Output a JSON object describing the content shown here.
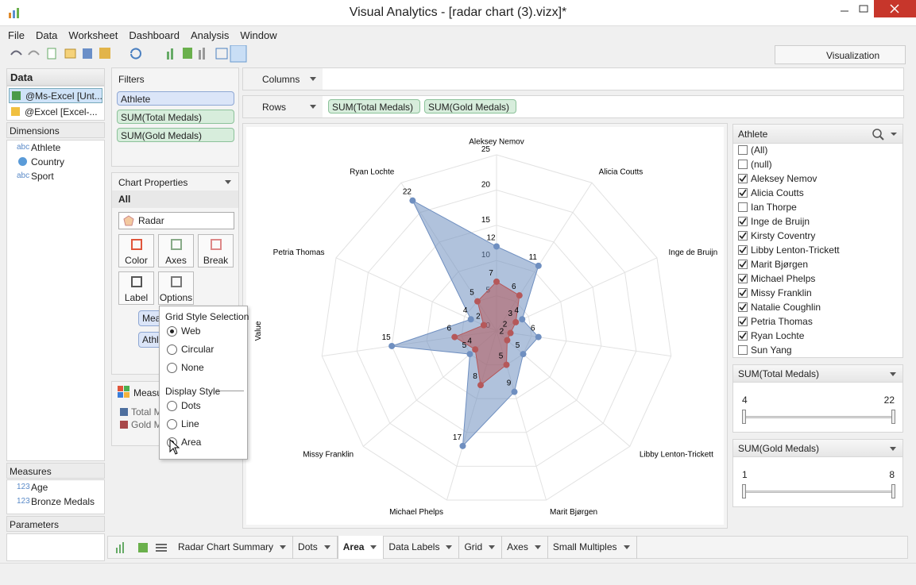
{
  "window": {
    "title": "Visual Analytics - [radar chart (3).vizx]*"
  },
  "menu": [
    "File",
    "Data",
    "Worksheet",
    "Dashboard",
    "Analysis",
    "Window"
  ],
  "toolbar": {
    "visualization": "Visualization"
  },
  "data_panel": {
    "title": "Data",
    "sources": [
      "@Ms-Excel [Unt...",
      "@Excel [Excel-..."
    ],
    "dimensions_title": "Dimensions",
    "dimensions": [
      {
        "icon": "abc",
        "name": "Athlete"
      },
      {
        "name": "Country"
      },
      {
        "icon": "abc",
        "name": "Sport"
      }
    ],
    "measures_title": "Measures",
    "measures": [
      {
        "icon": "123",
        "name": "Age"
      },
      {
        "icon": "123",
        "name": "Bronze Medals"
      }
    ],
    "parameters_title": "Parameters"
  },
  "filters": {
    "title": "Filters",
    "items": [
      "Athlete",
      "SUM(Total Medals)",
      "SUM(Gold Medals)"
    ]
  },
  "chart_properties": {
    "title": "Chart Properties",
    "scope": "All",
    "chart_type": "Radar",
    "buttons": [
      "Color",
      "Axes",
      "Break",
      "Label",
      "Options"
    ],
    "pills": [
      "Meas",
      "Athle"
    ]
  },
  "popup": {
    "grid_title": "Grid Style Selection",
    "grid_options": [
      {
        "label": "Web",
        "selected": true
      },
      {
        "label": "Circular",
        "selected": false
      },
      {
        "label": "None",
        "selected": false
      }
    ],
    "display_title": "Display Style",
    "display_options": [
      {
        "label": "Dots",
        "selected": false
      },
      {
        "label": "Line",
        "selected": false
      },
      {
        "label": "Area",
        "selected": true
      }
    ]
  },
  "legend": {
    "title": "Measu",
    "items": [
      {
        "label": "Total M",
        "color": "#4e6f9e"
      },
      {
        "label": "Gold Me",
        "color": "#a8484a"
      }
    ]
  },
  "shelves": {
    "columns": "Columns",
    "rows": "Rows",
    "row_pills": [
      "SUM(Total Medals)",
      "SUM(Gold Medals)"
    ]
  },
  "chart_data": {
    "type": "radar",
    "y_label": "Value",
    "categories": [
      "Aleksey Nemov",
      "Alicia Coutts",
      "Inge de Bruijn",
      null,
      "Libby Lenton-Trickett",
      "Marit Bjørgen",
      "Michael Phelps",
      "Missy Franklin",
      null,
      "Petria Thomas",
      "Ryan Lochte"
    ],
    "series": [
      {
        "color": "#6f8fc0",
        "values": [
          12,
          11,
          4,
          6,
          5,
          9,
          17,
          5,
          15,
          4,
          22
        ]
      },
      {
        "color": "#b5585a",
        "values": [
          7,
          6,
          3,
          2,
          2,
          5,
          8,
          4,
          6,
          2,
          5
        ]
      }
    ],
    "ylim": [
      0,
      25
    ],
    "yticks": [
      0,
      5,
      10,
      15,
      20,
      25
    ],
    "grid": "web"
  },
  "athlete_filter": {
    "title": "Athlete",
    "items": [
      {
        "label": "(All)",
        "checked": false
      },
      {
        "label": "(null)",
        "checked": false
      },
      {
        "label": "Aleksey Nemov",
        "checked": true
      },
      {
        "label": "Alicia Coutts",
        "checked": true
      },
      {
        "label": "Ian Thorpe",
        "checked": false
      },
      {
        "label": "Inge de Bruijn",
        "checked": true
      },
      {
        "label": "Kirsty Coventry",
        "checked": true
      },
      {
        "label": "Libby Lenton-Trickett",
        "checked": true
      },
      {
        "label": "Marit Bjørgen",
        "checked": true
      },
      {
        "label": "Michael Phelps",
        "checked": true
      },
      {
        "label": "Missy Franklin",
        "checked": true
      },
      {
        "label": "Natalie Coughlin",
        "checked": true
      },
      {
        "label": "Petria Thomas",
        "checked": true
      },
      {
        "label": "Ryan Lochte",
        "checked": true
      },
      {
        "label": "Sun Yang",
        "checked": false
      }
    ]
  },
  "sliders": [
    {
      "title": "SUM(Total Medals)",
      "min": 4,
      "max": 22
    },
    {
      "title": "SUM(Gold Medals)",
      "min": 1,
      "max": 8
    }
  ],
  "tabs": [
    {
      "label": "Radar Chart Summary",
      "active": false
    },
    {
      "label": "Dots",
      "active": false
    },
    {
      "label": "Area",
      "active": true
    },
    {
      "label": "Data Labels",
      "active": false
    },
    {
      "label": "Grid",
      "active": false
    },
    {
      "label": "Axes",
      "active": false
    },
    {
      "label": "Small Multiples",
      "active": false
    }
  ]
}
